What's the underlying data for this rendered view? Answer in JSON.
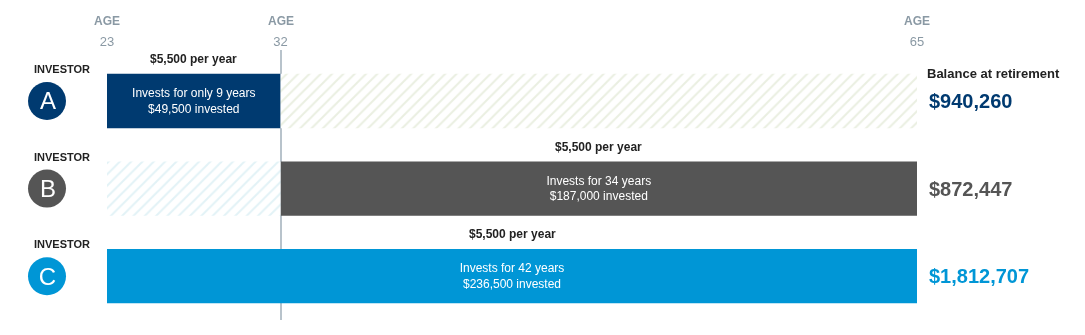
{
  "chart_data": {
    "type": "bar",
    "orientation": "horizontal",
    "categories": [
      "A",
      "B",
      "C"
    ],
    "series": [
      {
        "colors": [
          "#003a70",
          "#555555",
          "#0096d6"
        ],
        "values": [
          9,
          33,
          42
        ],
        "base": [
          23,
          32,
          23
        ],
        "value_labels": [
          "Invests for only 9 years\n$49,500 invested",
          "Invests for 34 years\n$187,000 invested",
          "Invests for 42 years\n$236,500 invested"
        ]
      },
      {
        "colors": [
          "#d5dfc4",
          "#c6e6ee",
          null
        ],
        "values": [
          33,
          9,
          null
        ],
        "base": [
          32,
          23,
          null
        ]
      }
    ],
    "xlim": [
      23,
      65
    ],
    "xticks": [
      23,
      32,
      65
    ],
    "grid": "x",
    "annotations": [
      "INVESTOR",
      "INVESTOR",
      "INVESTOR",
      "Balance at retirement",
      "AGE",
      "AGE",
      "AGE",
      "$5,500 per year",
      "$5,500 per year",
      "$5,500 per year",
      "$940,260",
      "$872,447",
      "$1,812,707"
    ]
  }
}
